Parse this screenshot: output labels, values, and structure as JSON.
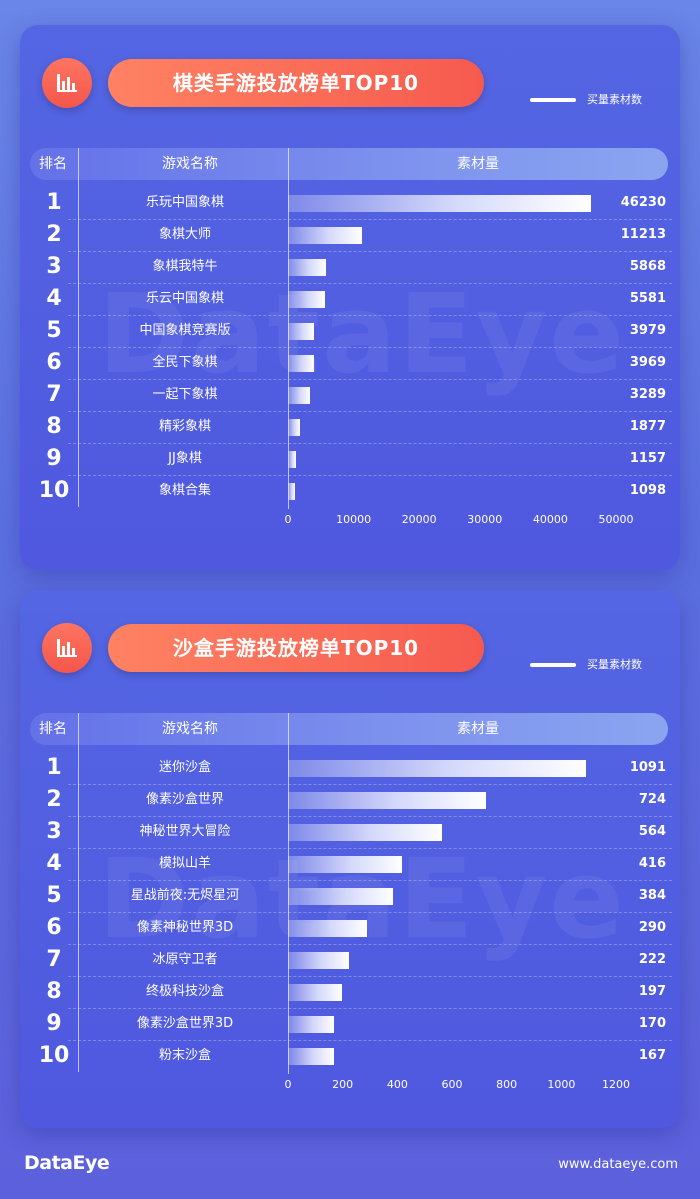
{
  "legend_label": "买量素材数",
  "table_headers": {
    "rank": "排名",
    "name": "游戏名称",
    "value": "素材量"
  },
  "colors": {
    "accent": "#f65a4e",
    "bar_end": "#ffffff"
  },
  "icon": "bar-chart-icon",
  "watermark": "DataEye",
  "footer": {
    "logo": "DataEye",
    "url": "www.dataeye.com"
  },
  "chart_data": [
    {
      "type": "bar",
      "orientation": "horizontal",
      "title": "棋类手游投放榜单TOP10",
      "series_name": "买量素材数",
      "ranks": [
        "1",
        "2",
        "3",
        "4",
        "5",
        "6",
        "7",
        "8",
        "9",
        "10"
      ],
      "categories": [
        "乐玩中国象棋",
        "象棋大师",
        "象棋我特牛",
        "乐云中国象棋",
        "中国象棋竞赛版",
        "全民下象棋",
        "一起下象棋",
        "精彩象棋",
        "JJ象棋",
        "象棋合集"
      ],
      "values": [
        46230,
        11213,
        5868,
        5581,
        3979,
        3969,
        3289,
        1877,
        1157,
        1098
      ],
      "xlim": [
        0,
        50000
      ],
      "xticks": [
        0,
        10000,
        20000,
        30000,
        40000,
        50000
      ],
      "legend_position": "top-right",
      "grid": false
    },
    {
      "type": "bar",
      "orientation": "horizontal",
      "title": "沙盒手游投放榜单TOP10",
      "series_name": "买量素材数",
      "ranks": [
        "1",
        "2",
        "3",
        "4",
        "5",
        "6",
        "7",
        "8",
        "9",
        "10"
      ],
      "categories": [
        "迷你沙盒",
        "像素沙盒世界",
        "神秘世界大冒险",
        "模拟山羊",
        "星战前夜:无烬星河",
        "像素神秘世界3D",
        "冰原守卫者",
        "终极科技沙盒",
        "像素沙盒世界3D",
        "粉末沙盒"
      ],
      "values": [
        1091,
        724,
        564,
        416,
        384,
        290,
        222,
        197,
        170,
        167
      ],
      "xlim": [
        0,
        1200
      ],
      "xticks": [
        0,
        200,
        400,
        600,
        800,
        1000,
        1200
      ],
      "legend_position": "top-right",
      "grid": false
    }
  ]
}
